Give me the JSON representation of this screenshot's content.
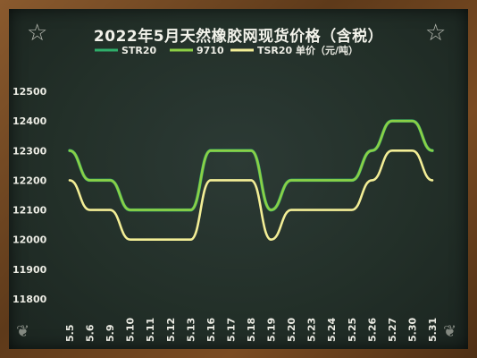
{
  "title": "2022年5月天然橡胶网现货价格（含税）",
  "chart_data": {
    "type": "line",
    "categories": [
      "5.5",
      "5.6",
      "5.9",
      "5.10",
      "5.11",
      "5.12",
      "5.13",
      "5.16",
      "5.17",
      "5.18",
      "5.19",
      "5.20",
      "5.23",
      "5.24",
      "5.25",
      "5.26",
      "5.27",
      "5.30",
      "5.31"
    ],
    "series": [
      {
        "name": "STR20",
        "color": "#2fae6a",
        "values": [
          12300,
          12200,
          12200,
          12100,
          12100,
          12100,
          12100,
          12300,
          12300,
          12300,
          12100,
          12200,
          12200,
          12200,
          12200,
          12300,
          12400,
          12400,
          12300
        ]
      },
      {
        "name": "9710",
        "color": "#8ccf45",
        "values": [
          12300,
          12200,
          12200,
          12100,
          12100,
          12100,
          12100,
          12300,
          12300,
          12300,
          12100,
          12200,
          12200,
          12200,
          12200,
          12300,
          12400,
          12400,
          12300
        ]
      },
      {
        "name": "TSR20 单价（元/吨）",
        "color": "#f3ee96",
        "values": [
          12200,
          12100,
          12100,
          12000,
          12000,
          12000,
          12000,
          12200,
          12200,
          12200,
          12000,
          12100,
          12100,
          12100,
          12100,
          12200,
          12300,
          12300,
          12200
        ]
      }
    ],
    "yticks": [
      11800,
      11900,
      12000,
      12100,
      12200,
      12300,
      12400,
      12500
    ],
    "ylim": [
      11800,
      12500
    ],
    "grid": false,
    "legend_position": "top"
  }
}
